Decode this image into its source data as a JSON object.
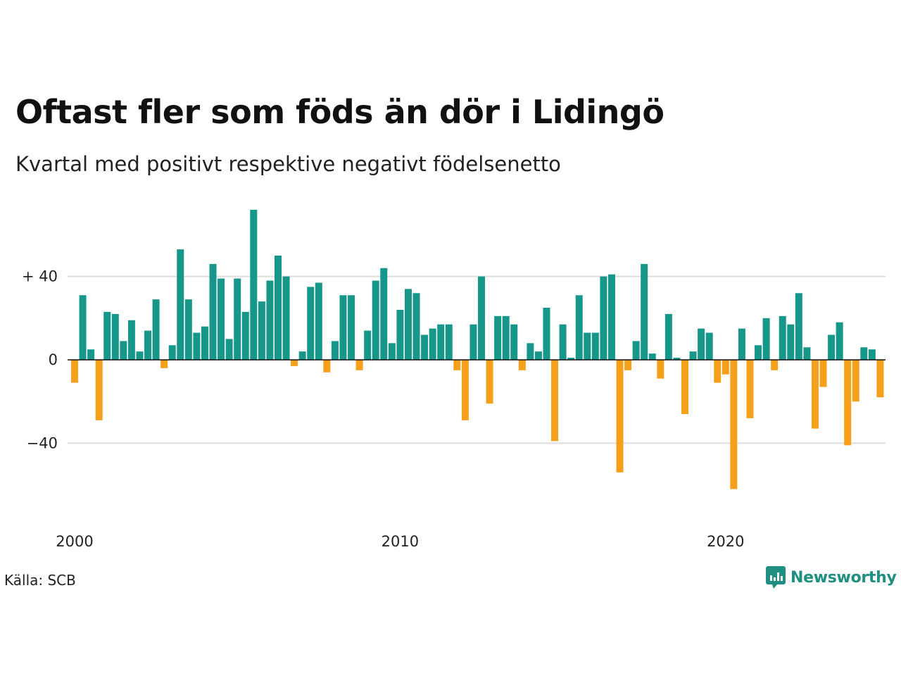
{
  "header": {
    "title": "Oftast fler som föds än dör i Lidingö",
    "subtitle": "Kvartal med positivt respektive negativt födelsenetto"
  },
  "footer": {
    "source": "Källa: SCB",
    "brand": "Newsworthy"
  },
  "colors": {
    "positive": "#16978a",
    "negative": "#f5a01a",
    "grid": "#dddddd",
    "baseline": "#111111",
    "brand": "#1f8f82"
  },
  "chart_data": {
    "type": "bar",
    "x_start": "2000 Q1",
    "ylim": [
      -72,
      72
    ],
    "y_ticks": [
      {
        "value": 40,
        "label": "+ 40"
      },
      {
        "value": 0,
        "label": "0"
      },
      {
        "value": -40,
        "label": "−40"
      }
    ],
    "x_ticks": [
      {
        "year": 2000,
        "label": "2000"
      },
      {
        "year": 2010,
        "label": "2010"
      },
      {
        "year": 2020,
        "label": "2020"
      }
    ],
    "grid": true,
    "values": [
      -11,
      31,
      5,
      -29,
      23,
      22,
      9,
      19,
      4,
      14,
      29,
      -4,
      7,
      53,
      29,
      13,
      16,
      46,
      39,
      10,
      39,
      23,
      72,
      28,
      38,
      50,
      40,
      -3,
      4,
      35,
      37,
      -6,
      9,
      31,
      31,
      -5,
      14,
      38,
      44,
      8,
      24,
      34,
      32,
      12,
      15,
      17,
      17,
      -5,
      -29,
      17,
      40,
      -21,
      21,
      21,
      17,
      -5,
      8,
      4,
      25,
      -39,
      17,
      1,
      31,
      13,
      13,
      40,
      41,
      -54,
      -5,
      9,
      46,
      3,
      -9,
      22,
      1,
      -26,
      4,
      15,
      13,
      -11,
      -7,
      -62,
      15,
      -28,
      7,
      20,
      -5,
      21,
      17,
      32,
      6,
      -33,
      -13,
      12,
      18,
      -41,
      -20,
      6,
      5,
      -18
    ]
  }
}
